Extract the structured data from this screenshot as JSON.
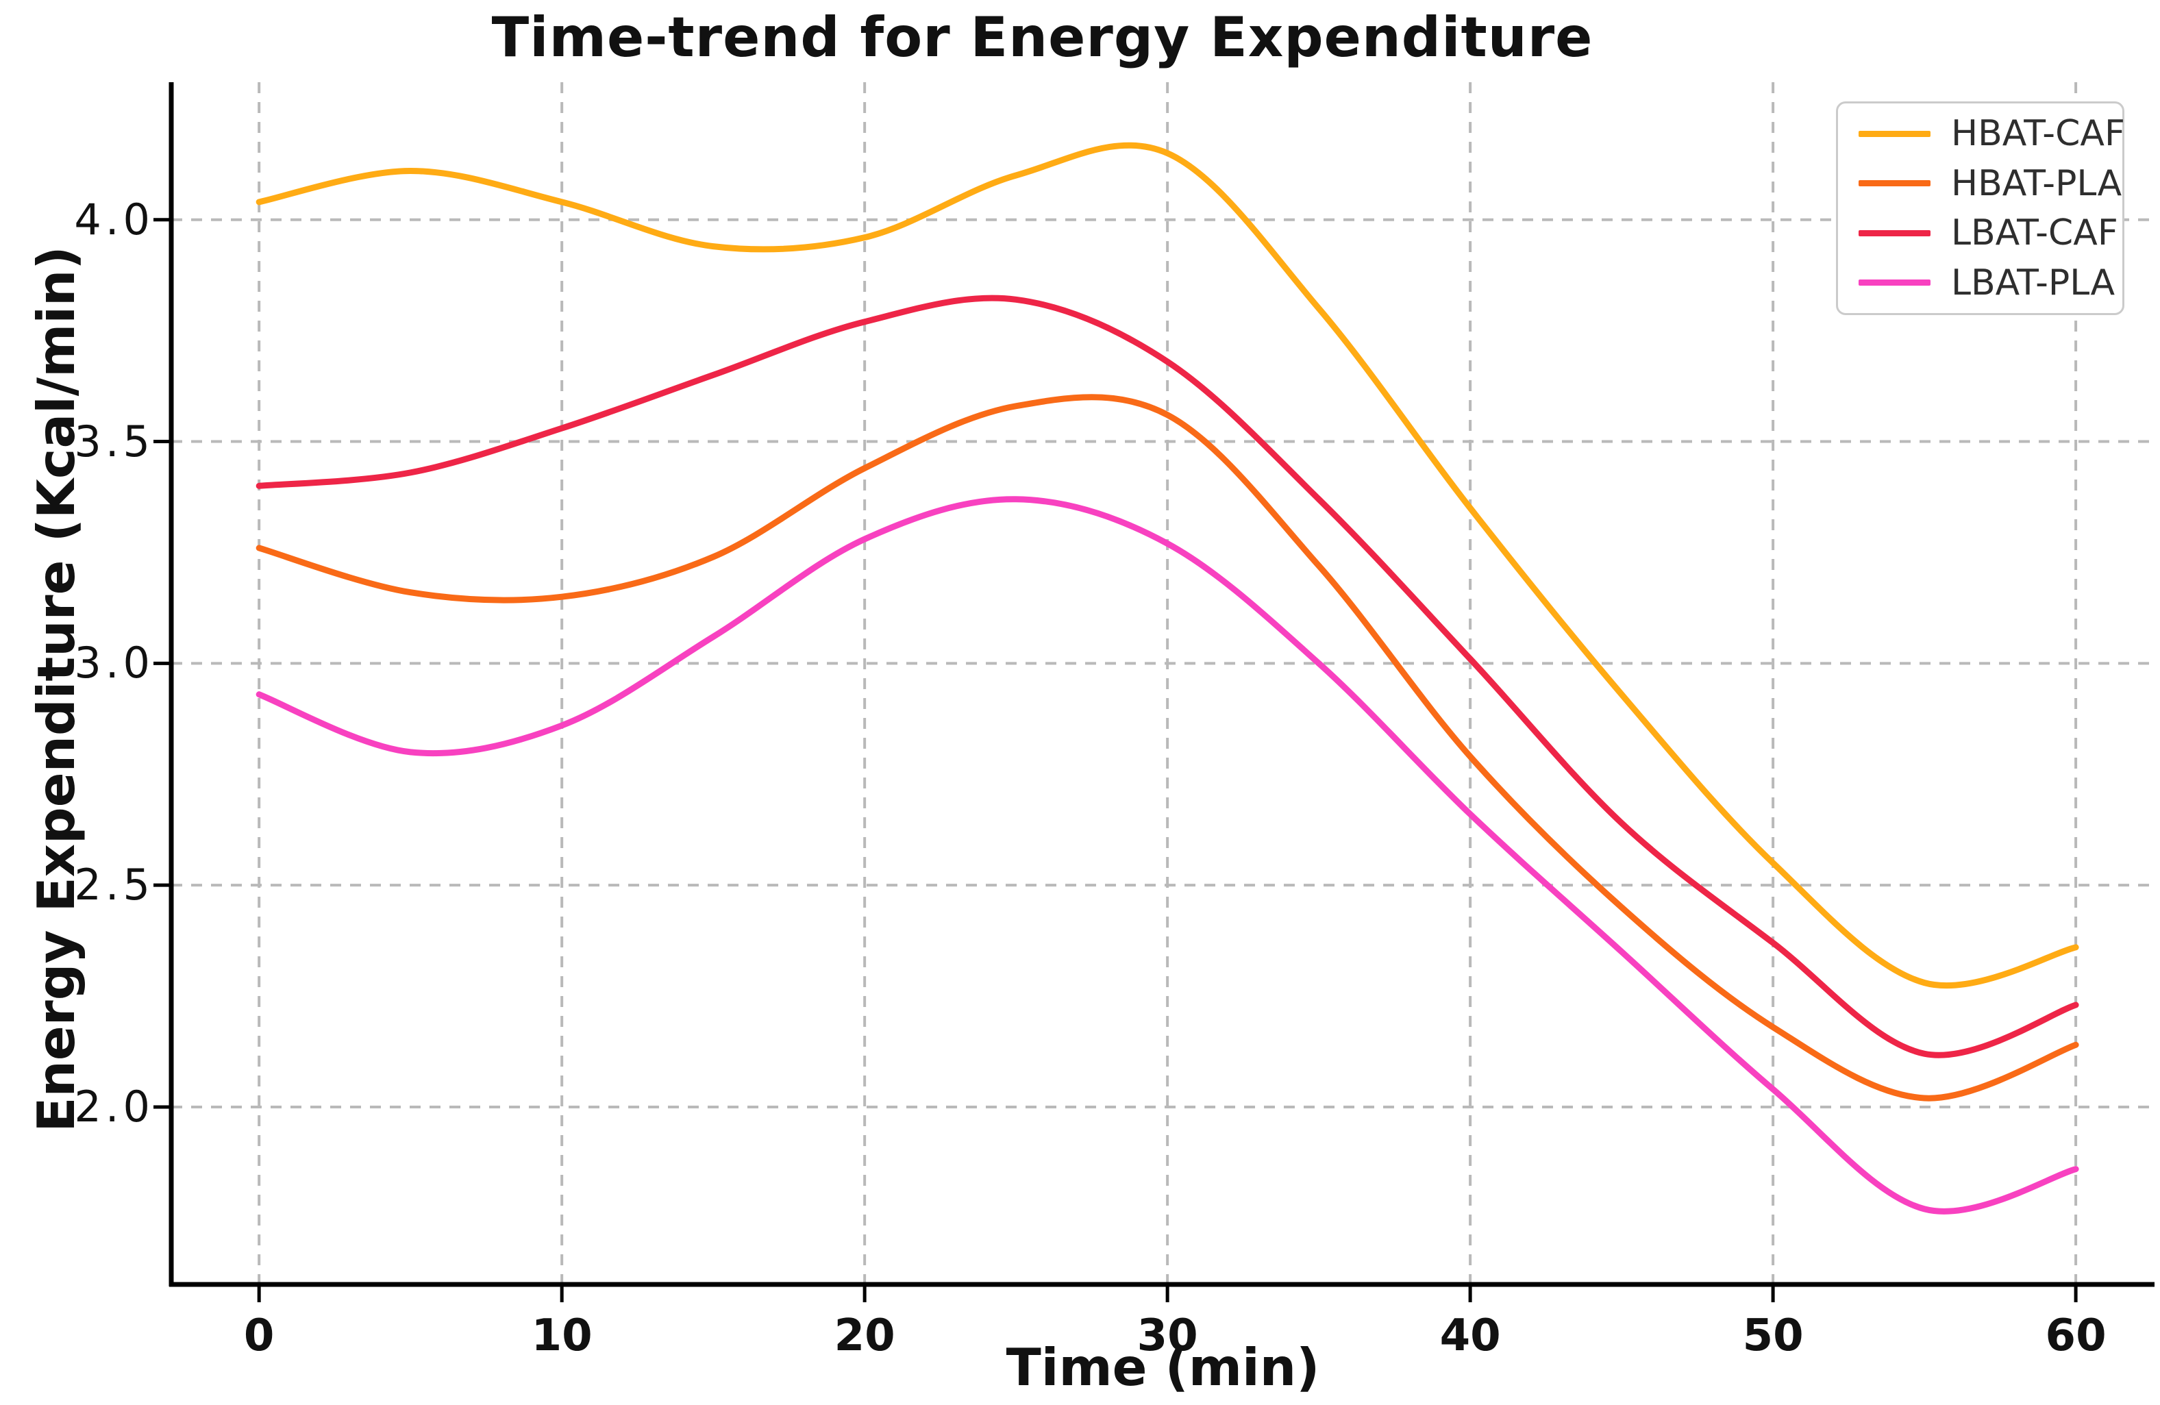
{
  "chart_data": {
    "type": "line",
    "title": "Time-trend for Energy Expenditure",
    "xlabel": "Time (min)",
    "ylabel": "Energy Expenditure (Kcal/min)",
    "x": [
      0,
      5,
      10,
      15,
      20,
      25,
      30,
      35,
      40,
      45,
      50,
      55,
      60
    ],
    "series": [
      {
        "name": "HBAT-CAF",
        "color": "#ffab14",
        "values": [
          4.04,
          4.11,
          4.04,
          3.94,
          3.96,
          4.1,
          4.15,
          3.8,
          3.35,
          2.93,
          2.55,
          2.28,
          2.36
        ]
      },
      {
        "name": "HBAT-PLA",
        "color": "#f96a17",
        "values": [
          3.26,
          3.16,
          3.15,
          3.24,
          3.44,
          3.58,
          3.56,
          3.22,
          2.79,
          2.45,
          2.18,
          2.02,
          2.14
        ]
      },
      {
        "name": "LBAT-CAF",
        "color": "#ee2547",
        "values": [
          3.4,
          3.43,
          3.53,
          3.65,
          3.77,
          3.82,
          3.68,
          3.37,
          3.01,
          2.64,
          2.37,
          2.12,
          2.23
        ]
      },
      {
        "name": "LBAT-PLA",
        "color": "#f841c0",
        "values": [
          2.93,
          2.8,
          2.86,
          3.06,
          3.28,
          3.37,
          3.27,
          3.0,
          2.66,
          2.35,
          2.04,
          1.77,
          1.86
        ]
      }
    ],
    "xlim": [
      -2.9,
      62.6
    ],
    "ylim": [
      1.6,
      4.31
    ],
    "xticks": {
      "values": [
        0,
        10,
        20,
        30,
        40,
        50,
        60
      ],
      "labels": [
        "0",
        "10",
        "20",
        "30",
        "40",
        "50",
        "60"
      ]
    },
    "yticks": {
      "values": [
        4.0,
        3.5,
        3.0,
        2.5,
        2.0
      ],
      "labels": [
        "4.0",
        "3.5",
        "3.0",
        "2.5",
        "2.0"
      ]
    },
    "grid": "dashed",
    "legend_position": "upper-right"
  }
}
